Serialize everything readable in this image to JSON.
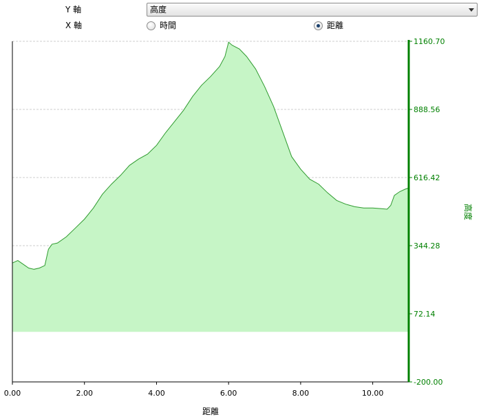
{
  "controls": {
    "y_axis_label": "Y 軸",
    "x_axis_label": "X 軸",
    "y_select_value": "高度",
    "radio_options": [
      {
        "label": "時間",
        "checked": false
      },
      {
        "label": "距離",
        "checked": true
      }
    ]
  },
  "colors": {
    "accent": "#008000",
    "fill": "#c6f5c6",
    "line": "#2e9a2e",
    "grid": "#cccccc"
  },
  "chart_data": {
    "type": "area",
    "title": "",
    "xlabel": "距離",
    "ylabel": "高度",
    "xlim": [
      0,
      11.0
    ],
    "ylim": [
      -200,
      1160.7
    ],
    "fill_baseline": 0,
    "grid": "horizontal dashed",
    "y_axis_side": "right",
    "x_ticks": [
      "0.00",
      "2.00",
      "4.00",
      "6.00",
      "8.00",
      "10.00"
    ],
    "y_ticks": [
      "-200.00",
      "72.14",
      "344.28",
      "616.42",
      "888.56",
      "1160.70"
    ],
    "series": [
      {
        "name": "高度",
        "x": [
          0.0,
          0.15,
          0.25,
          0.35,
          0.45,
          0.6,
          0.75,
          0.9,
          1.0,
          1.1,
          1.25,
          1.5,
          1.75,
          2.0,
          2.25,
          2.5,
          2.75,
          3.0,
          3.25,
          3.5,
          3.75,
          4.0,
          4.25,
          4.5,
          4.75,
          5.0,
          5.25,
          5.5,
          5.75,
          5.9,
          6.0,
          6.1,
          6.3,
          6.5,
          6.75,
          7.0,
          7.25,
          7.5,
          7.75,
          8.0,
          8.25,
          8.5,
          8.75,
          9.0,
          9.25,
          9.5,
          9.75,
          10.0,
          10.25,
          10.4,
          10.5,
          10.6,
          10.75,
          10.9,
          11.0
        ],
        "values": [
          275,
          285,
          275,
          265,
          255,
          250,
          255,
          265,
          330,
          350,
          355,
          380,
          415,
          450,
          495,
          550,
          590,
          625,
          665,
          690,
          710,
          745,
          795,
          840,
          885,
          940,
          985,
          1020,
          1060,
          1100,
          1157,
          1145,
          1130,
          1100,
          1050,
          980,
          900,
          800,
          700,
          650,
          610,
          590,
          555,
          525,
          510,
          500,
          495,
          495,
          492,
          490,
          505,
          545,
          560,
          570,
          575
        ]
      }
    ]
  }
}
